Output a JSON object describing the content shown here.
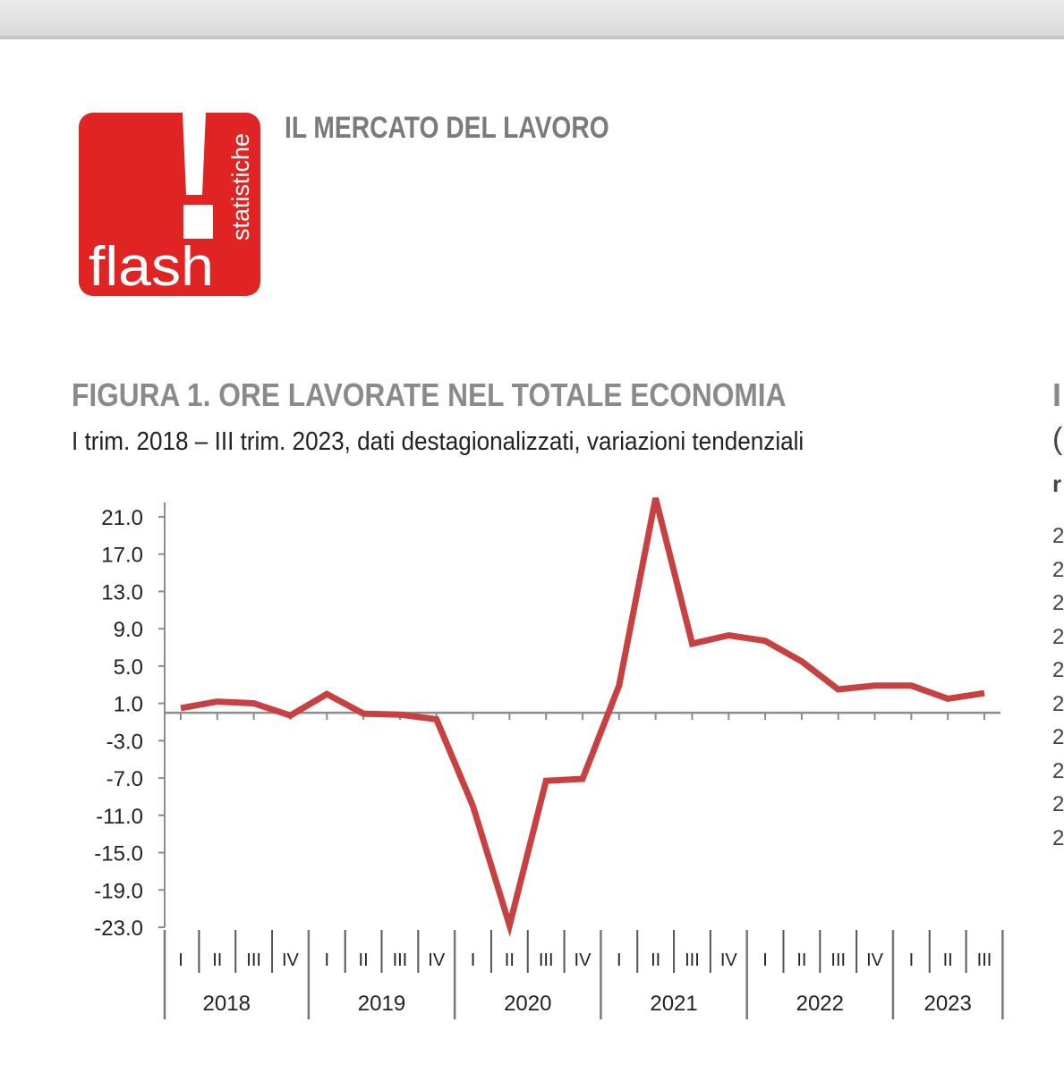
{
  "header": {
    "report_title": "IL MERCATO DEL LAVORO",
    "logo": {
      "word": "flash",
      "side_word": "statistiche",
      "color": "#e02424"
    }
  },
  "figure": {
    "title": "FIGURA 1. ORE LAVORATE NEL TOTALE ECONOMIA",
    "subtitle": "I trim. 2018 – III trim. 2023, dati destagionalizzati, variazioni tendenziali"
  },
  "chart_data": {
    "type": "line",
    "title": "FIGURA 1. ORE LAVORATE NEL TOTALE ECONOMIA",
    "xlabel": "",
    "ylabel": "",
    "ylim": [
      -23.0,
      23.0
    ],
    "yticks": [
      "21.0",
      "17.0",
      "13.0",
      "9.0",
      "5.0",
      "1.0",
      "-3.0",
      "-7.0",
      "-11.0",
      "-15.0",
      "-19.0",
      "-23.0"
    ],
    "years": [
      {
        "label": "2018",
        "quarters": [
          "I",
          "II",
          "III",
          "IV"
        ]
      },
      {
        "label": "2019",
        "quarters": [
          "I",
          "II",
          "III",
          "IV"
        ]
      },
      {
        "label": "2020",
        "quarters": [
          "I",
          "II",
          "III",
          "IV"
        ]
      },
      {
        "label": "2021",
        "quarters": [
          "I",
          "II",
          "III",
          "IV"
        ]
      },
      {
        "label": "2022",
        "quarters": [
          "I",
          "II",
          "III",
          "IV"
        ]
      },
      {
        "label": "2023",
        "quarters": [
          "I",
          "II",
          "III"
        ]
      }
    ],
    "series": [
      {
        "color": "#c94040",
        "values": [
          0.5,
          1.2,
          1.0,
          -0.3,
          2.0,
          -0.1,
          -0.2,
          -0.7,
          -10.0,
          -22.8,
          -7.3,
          -7.1,
          2.9,
          23.0,
          7.4,
          8.3,
          7.7,
          5.5,
          2.5,
          2.9,
          2.9,
          1.5,
          2.1
        ]
      }
    ],
    "grid": false,
    "legend": "none"
  },
  "cut_off_right": {
    "title_char": "I",
    "sub_char": "(",
    "label_char": "r",
    "tick_chars": [
      "2",
      "2",
      "2",
      "2",
      "2",
      "2",
      "2",
      "2",
      "2",
      "2"
    ]
  }
}
